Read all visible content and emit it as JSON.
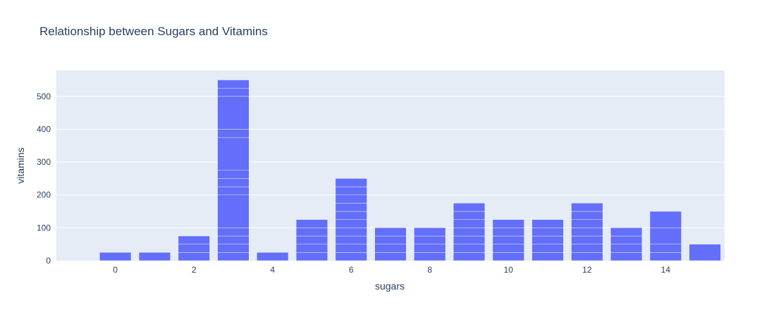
{
  "chart_data": {
    "type": "bar",
    "title": "Relationship between Sugars and Vitamins",
    "xlabel": "sugars",
    "ylabel": "vitamins",
    "x": [
      0,
      1,
      2,
      3,
      4,
      5,
      6,
      7,
      8,
      9,
      10,
      11,
      12,
      13,
      14,
      15
    ],
    "values": [
      25,
      25,
      75,
      550,
      25,
      125,
      250,
      100,
      100,
      175,
      125,
      125,
      175,
      100,
      150,
      50
    ],
    "segments": [
      [
        25
      ],
      [
        25
      ],
      [
        25,
        25,
        25
      ],
      [
        25,
        25,
        25,
        25,
        100,
        25,
        25,
        25,
        100,
        25,
        100,
        25,
        25
      ],
      [
        25
      ],
      [
        25,
        25,
        25,
        25,
        25
      ],
      [
        25,
        25,
        25,
        25,
        25,
        25,
        25,
        25,
        25,
        25
      ],
      [
        25,
        25,
        25,
        25
      ],
      [
        25,
        25,
        25,
        25
      ],
      [
        25,
        25,
        25,
        25,
        25,
        25,
        25
      ],
      [
        25,
        25,
        25,
        25,
        25
      ],
      [
        25,
        25,
        25,
        25,
        25
      ],
      [
        25,
        25,
        25,
        25,
        25,
        25,
        25
      ],
      [
        25,
        25,
        25,
        25
      ],
      [
        25,
        25,
        50,
        50
      ],
      [
        50
      ]
    ],
    "xlim": [
      -1.5,
      15.5
    ],
    "ylim": [
      0,
      579
    ],
    "xticks": [
      0,
      2,
      4,
      6,
      8,
      10,
      12,
      14
    ],
    "yticks": [
      0,
      100,
      200,
      300,
      400,
      500
    ],
    "grid": true,
    "colors": {
      "bar": "#636efa",
      "plot_bg": "#e5ecf6",
      "grid": "#ffffff",
      "text": "#2a3f5f"
    }
  }
}
